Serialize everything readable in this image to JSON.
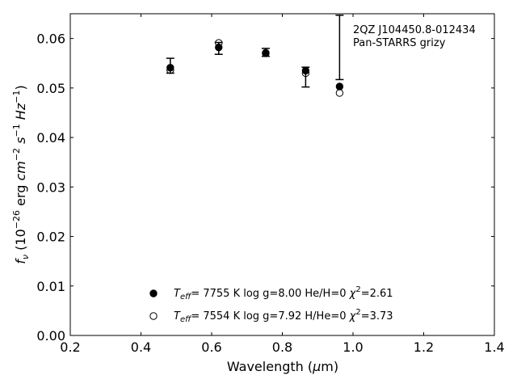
{
  "chart_data": {
    "type": "scatter",
    "xlabel": "Wavelength (μm)",
    "ylabel": "f_ν (10^-26 erg cm^-2 s^-1 Hz^-1)",
    "xlim": [
      0.2,
      1.4
    ],
    "ylim": [
      0.0,
      0.065
    ],
    "xticks": [
      "0.2",
      "0.4",
      "0.6",
      "0.8",
      "1.0",
      "1.2",
      "1.4"
    ],
    "yticks": [
      "0.00",
      "0.01",
      "0.02",
      "0.03",
      "0.04",
      "0.05",
      "0.06"
    ],
    "grid": false,
    "annotation": [
      "2QZ J104450.8-012434",
      "Pan-STARRS grizy"
    ],
    "observed": {
      "x": [
        0.483,
        0.62,
        0.753,
        0.866,
        0.962
      ],
      "y": [
        0.0545,
        0.058,
        0.0572,
        0.0522,
        0.0582
      ],
      "yerr": [
        0.0015,
        0.0012,
        0.0008,
        0.002,
        0.0065
      ]
    },
    "series": [
      {
        "marker": "filled",
        "legend": "T_eff= 7755 K log g=8.00 He/H=0 χ²=2.61",
        "x": [
          0.483,
          0.62,
          0.753,
          0.866,
          0.962
        ],
        "y": [
          0.0541,
          0.0582,
          0.0571,
          0.0535,
          0.0503
        ]
      },
      {
        "marker": "open",
        "legend": "T_eff= 7554 K log g=7.92 H/He=0 χ²=3.73",
        "x": [
          0.483,
          0.62,
          0.753,
          0.866,
          0.962
        ],
        "y": [
          0.0536,
          0.0591,
          0.057,
          0.053,
          0.049
        ]
      }
    ]
  }
}
